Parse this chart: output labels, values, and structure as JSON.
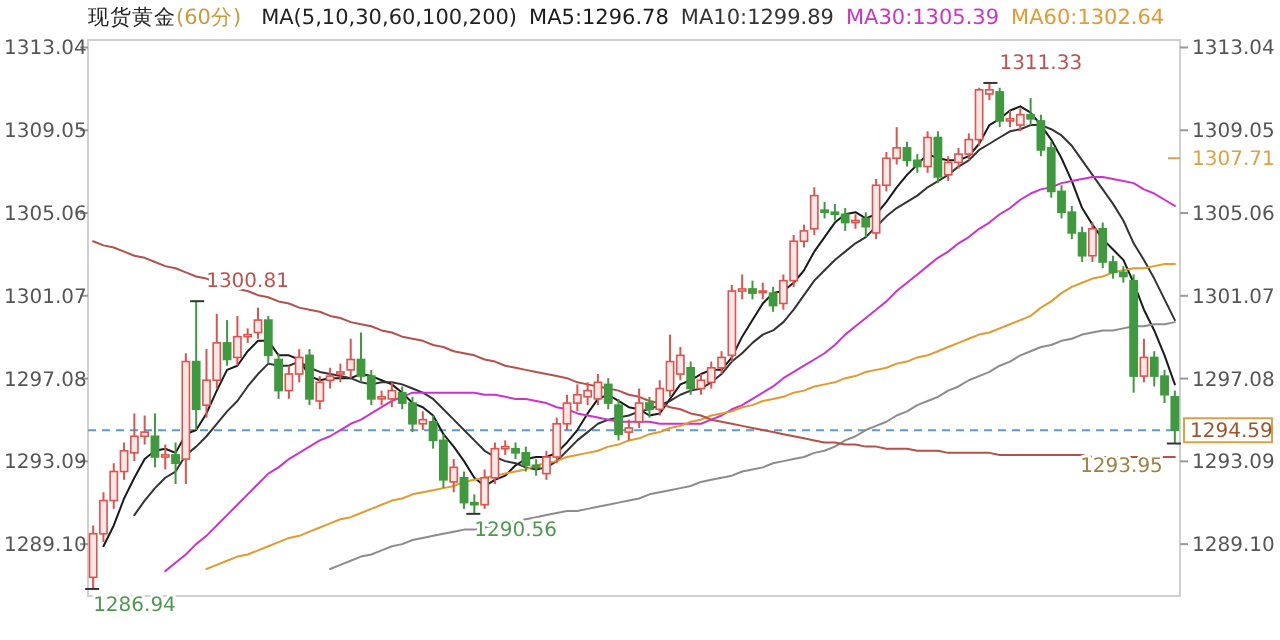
{
  "chart_data": {
    "type": "candlestick",
    "title": "现货黄金",
    "subtitle": "(60分)",
    "legend_title": "MA(5,10,30,60,100,200)",
    "legend": "top",
    "tick_labels": "y",
    "categories": [
      null,
      null,
      null,
      null,
      null,
      null,
      null,
      null,
      null,
      null,
      null,
      null,
      null,
      null,
      null,
      null,
      null,
      null,
      null,
      null,
      null,
      null,
      null,
      null,
      null,
      null,
      null,
      null,
      null,
      null,
      null,
      null,
      null,
      null,
      null,
      null,
      null,
      null,
      null,
      null,
      null,
      null,
      null,
      null,
      null,
      null,
      null,
      null,
      null,
      null,
      null,
      null,
      null,
      null,
      null,
      null,
      null,
      null,
      null,
      null,
      null,
      null,
      null,
      null,
      null,
      null,
      null,
      null,
      null,
      null,
      null,
      null,
      null,
      null,
      null,
      null,
      null,
      null,
      null,
      null,
      null,
      null,
      null,
      null,
      null,
      null,
      null,
      null,
      null,
      null,
      null,
      null,
      null,
      null,
      null,
      null,
      null,
      null,
      null,
      null,
      null,
      null,
      null,
      null,
      null,
      null
    ],
    "ylim": [
      1286.6,
      1313.4
    ],
    "yticks": [
      {
        "value": 1289.1,
        "label": "1289.10"
      },
      {
        "value": 1293.09,
        "label": "1293.09"
      },
      {
        "value": 1297.08,
        "label": "1297.08"
      },
      {
        "value": 1301.07,
        "label": "1301.07"
      },
      {
        "value": 1305.06,
        "label": "1305.06"
      },
      {
        "value": 1309.05,
        "label": "1309.05"
      },
      {
        "value": 1313.04,
        "label": "1313.04"
      }
    ],
    "y2lim": [
      1286.6,
      1313.4
    ],
    "y2ticks": [
      {
        "value": 1289.1,
        "label": "1289.10"
      },
      {
        "value": 1293.09,
        "label": "1293.09"
      },
      {
        "value": 1297.08,
        "label": "1297.08"
      },
      {
        "value": 1301.07,
        "label": "1301.07"
      },
      {
        "value": 1305.06,
        "label": "1305.06"
      },
      {
        "value": 1309.05,
        "label": "1309.05"
      },
      {
        "value": 1313.04,
        "label": "1313.04"
      }
    ],
    "ohlc": [
      [
        1287.5,
        1290.0,
        1286.94,
        1289.6
      ],
      [
        1289.6,
        1291.6,
        1289.2,
        1291.2
      ],
      [
        1291.2,
        1293.0,
        1290.8,
        1292.6
      ],
      [
        1292.6,
        1294.0,
        1292.2,
        1293.6
      ],
      [
        1293.5,
        1295.4,
        1293.1,
        1294.3
      ],
      [
        1294.3,
        1295.3,
        1293.9,
        1294.5
      ],
      [
        1294.3,
        1295.4,
        1292.8,
        1293.3
      ],
      [
        1293.3,
        1293.9,
        1292.7,
        1293.4
      ],
      [
        1293.4,
        1294.0,
        1292.0,
        1293.0
      ],
      [
        1293.2,
        1298.3,
        1292.0,
        1297.9
      ],
      [
        1297.9,
        1300.81,
        1294.6,
        1295.6
      ],
      [
        1295.8,
        1298.5,
        1295.2,
        1297.0
      ],
      [
        1297.0,
        1300.2,
        1296.6,
        1298.8
      ],
      [
        1298.8,
        1299.9,
        1297.7,
        1298.0
      ],
      [
        1298.1,
        1300.1,
        1297.7,
        1299.1
      ],
      [
        1299.1,
        1299.5,
        1298.8,
        1299.2
      ],
      [
        1299.3,
        1300.5,
        1299.0,
        1299.9
      ],
      [
        1299.9,
        1300.1,
        1297.8,
        1298.2
      ],
      [
        1298.0,
        1298.3,
        1296.1,
        1296.5
      ],
      [
        1296.5,
        1297.7,
        1296.1,
        1297.3
      ],
      [
        1297.3,
        1298.5,
        1296.9,
        1298.1
      ],
      [
        1298.2,
        1298.5,
        1295.8,
        1296.1
      ],
      [
        1296.0,
        1297.2,
        1295.6,
        1296.9
      ],
      [
        1297.0,
        1297.6,
        1296.6,
        1297.2
      ],
      [
        1297.3,
        1297.8,
        1296.9,
        1297.4
      ],
      [
        1297.5,
        1299.0,
        1297.1,
        1298.0
      ],
      [
        1298.0,
        1299.3,
        1296.9,
        1297.2
      ],
      [
        1297.2,
        1297.5,
        1295.8,
        1296.1
      ],
      [
        1296.1,
        1296.5,
        1295.8,
        1296.2
      ],
      [
        1296.1,
        1296.9,
        1295.7,
        1296.5
      ],
      [
        1296.4,
        1296.7,
        1295.6,
        1295.9
      ],
      [
        1295.9,
        1296.2,
        1294.5,
        1294.9
      ],
      [
        1294.9,
        1295.5,
        1294.6,
        1295.1
      ],
      [
        1295.0,
        1295.3,
        1293.7,
        1294.1
      ],
      [
        1294.1,
        1294.4,
        1291.8,
        1292.2
      ],
      [
        1292.1,
        1293.2,
        1291.6,
        1292.8
      ],
      [
        1292.3,
        1292.6,
        1290.8,
        1291.1
      ],
      [
        1291.1,
        1291.5,
        1290.56,
        1291.0
      ],
      [
        1291.0,
        1292.7,
        1290.8,
        1292.3
      ],
      [
        1292.3,
        1294.0,
        1292.0,
        1293.7
      ],
      [
        1293.7,
        1294.1,
        1293.4,
        1293.8
      ],
      [
        1293.7,
        1294.0,
        1293.2,
        1293.5
      ],
      [
        1293.5,
        1293.8,
        1292.6,
        1292.9
      ],
      [
        1292.9,
        1293.2,
        1292.4,
        1292.8
      ],
      [
        1292.5,
        1293.6,
        1292.2,
        1293.3
      ],
      [
        1293.3,
        1295.2,
        1293.0,
        1294.9
      ],
      [
        1294.9,
        1296.3,
        1294.6,
        1295.9
      ],
      [
        1295.9,
        1296.8,
        1295.5,
        1296.3
      ],
      [
        1296.2,
        1296.9,
        1295.8,
        1296.5
      ],
      [
        1296.1,
        1297.3,
        1295.8,
        1296.9
      ],
      [
        1296.8,
        1297.1,
        1295.6,
        1295.9
      ],
      [
        1295.8,
        1296.1,
        1294.1,
        1294.4
      ],
      [
        1294.5,
        1295.1,
        1294.1,
        1294.7
      ],
      [
        1295.0,
        1296.6,
        1294.7,
        1295.9
      ],
      [
        1295.9,
        1296.2,
        1295.2,
        1295.6
      ],
      [
        1295.6,
        1297.0,
        1295.3,
        1296.6
      ],
      [
        1296.5,
        1299.2,
        1296.2,
        1297.9
      ],
      [
        1297.3,
        1298.6,
        1297.0,
        1298.2
      ],
      [
        1297.6,
        1297.9,
        1296.3,
        1296.6
      ],
      [
        1296.6,
        1297.3,
        1296.3,
        1297.0
      ],
      [
        1296.9,
        1297.9,
        1296.6,
        1297.6
      ],
      [
        1297.6,
        1298.4,
        1297.3,
        1298.1
      ],
      [
        1298.2,
        1301.6,
        1297.9,
        1301.3
      ],
      [
        1301.3,
        1302.1,
        1300.9,
        1301.4
      ],
      [
        1301.4,
        1301.8,
        1300.9,
        1301.2
      ],
      [
        1301.3,
        1301.7,
        1300.9,
        1301.3
      ],
      [
        1301.2,
        1301.5,
        1300.3,
        1300.6
      ],
      [
        1300.7,
        1302.1,
        1300.4,
        1301.8
      ],
      [
        1301.8,
        1304.0,
        1301.5,
        1303.7
      ],
      [
        1303.7,
        1304.5,
        1303.4,
        1304.2
      ],
      [
        1304.3,
        1306.3,
        1304.0,
        1305.9
      ],
      [
        1305.2,
        1305.6,
        1304.8,
        1305.1
      ],
      [
        1305.1,
        1305.5,
        1304.7,
        1305.0
      ],
      [
        1305.0,
        1305.3,
        1304.2,
        1304.6
      ],
      [
        1304.6,
        1305.0,
        1304.3,
        1304.7
      ],
      [
        1304.8,
        1305.1,
        1303.9,
        1304.4
      ],
      [
        1304.1,
        1306.7,
        1303.8,
        1306.4
      ],
      [
        1306.4,
        1308.0,
        1306.1,
        1307.7
      ],
      [
        1307.7,
        1309.2,
        1307.4,
        1308.2
      ],
      [
        1308.2,
        1308.5,
        1307.3,
        1307.6
      ],
      [
        1307.6,
        1307.9,
        1307.0,
        1307.3
      ],
      [
        1307.3,
        1309.0,
        1307.0,
        1308.7
      ],
      [
        1308.7,
        1309.0,
        1306.5,
        1306.8
      ],
      [
        1306.9,
        1307.8,
        1306.6,
        1307.5
      ],
      [
        1307.5,
        1308.2,
        1307.2,
        1307.9
      ],
      [
        1307.9,
        1308.9,
        1307.6,
        1308.6
      ],
      [
        1308.6,
        1311.1,
        1308.3,
        1311.0
      ],
      [
        1310.8,
        1311.33,
        1310.5,
        1311.0
      ],
      [
        1310.9,
        1311.1,
        1309.2,
        1309.5
      ],
      [
        1309.5,
        1310.0,
        1309.2,
        1309.6
      ],
      [
        1309.3,
        1310.1,
        1309.0,
        1309.8
      ],
      [
        1309.8,
        1310.6,
        1309.3,
        1309.6
      ],
      [
        1309.5,
        1309.8,
        1307.8,
        1308.1
      ],
      [
        1308.2,
        1308.5,
        1305.8,
        1306.1
      ],
      [
        1306.1,
        1306.4,
        1304.8,
        1305.1
      ],
      [
        1305.1,
        1305.4,
        1303.8,
        1304.1
      ],
      [
        1304.1,
        1304.4,
        1302.7,
        1303.0
      ],
      [
        1303.0,
        1304.6,
        1302.7,
        1304.3
      ],
      [
        1304.3,
        1304.6,
        1302.4,
        1302.7
      ],
      [
        1302.7,
        1303.0,
        1301.9,
        1302.2
      ],
      [
        1302.2,
        1302.5,
        1301.7,
        1302.0
      ],
      [
        1301.8,
        1302.1,
        1296.4,
        1297.2
      ],
      [
        1297.2,
        1299.0,
        1296.9,
        1298.1
      ],
      [
        1298.1,
        1298.4,
        1296.7,
        1297.2
      ],
      [
        1297.2,
        1297.5,
        1295.9,
        1296.3
      ],
      [
        1296.2,
        1296.5,
        1293.95,
        1294.59
      ]
    ],
    "series": [
      {
        "type": "line",
        "name": "MA5:1296.78",
        "color": "#1a1a1a",
        "values": [
          null,
          1289.0,
          1290.0,
          1291.3,
          1292.3,
          1293.2,
          1293.6,
          1293.7,
          1293.5,
          1294.4,
          1294.6,
          1295.4,
          1296.5,
          1297.5,
          1297.7,
          1298.4,
          1298.9,
          1298.9,
          1298.2,
          1298.2,
          1298.0,
          1297.2,
          1297.0,
          1297.1,
          1297.1,
          1297.1,
          1297.3,
          1297.2,
          1297.0,
          1296.8,
          1296.4,
          1295.9,
          1295.7,
          1295.3,
          1294.4,
          1293.8,
          1293.1,
          1292.3,
          1291.9,
          1292.2,
          1292.4,
          1292.9,
          1293.2,
          1293.3,
          1293.3,
          1293.5,
          1294.0,
          1294.6,
          1295.4,
          1296.1,
          1296.3,
          1296.0,
          1295.7,
          1295.6,
          1295.3,
          1295.4,
          1296.1,
          1296.8,
          1297.0,
          1297.3,
          1297.5,
          1297.5,
          1298.1,
          1299.1,
          1299.9,
          1300.7,
          1301.2,
          1301.3,
          1301.7,
          1302.3,
          1303.2,
          1303.9,
          1304.6,
          1305.0,
          1305.1,
          1304.8,
          1305.0,
          1305.6,
          1306.3,
          1306.9,
          1307.4,
          1307.9,
          1307.7,
          1307.6,
          1307.6,
          1307.8,
          1308.4,
          1309.3,
          1309.6,
          1310.0,
          1310.2,
          1309.9,
          1309.3,
          1308.6,
          1307.7,
          1306.6,
          1305.3,
          1304.5,
          1303.8,
          1303.3,
          1302.8,
          1301.7,
          1300.4,
          1299.4,
          1298.2,
          1296.8
        ]
      },
      {
        "type": "line",
        "name": "MA10:1299.89",
        "color": "#333333",
        "values": [
          null,
          null,
          null,
          null,
          1290.5,
          1291.2,
          1291.8,
          1292.3,
          1292.6,
          1293.4,
          1293.8,
          1294.3,
          1294.9,
          1295.5,
          1296.0,
          1296.7,
          1297.3,
          1297.8,
          1297.7,
          1297.7,
          1297.9,
          1297.6,
          1297.4,
          1297.3,
          1297.2,
          1297.1,
          1296.9,
          1296.8,
          1296.9,
          1296.9,
          1296.8,
          1296.6,
          1296.4,
          1296.1,
          1295.6,
          1295.1,
          1294.6,
          1294.1,
          1293.6,
          1293.3,
          1293.1,
          1293.0,
          1292.8,
          1292.7,
          1292.8,
          1293.1,
          1293.6,
          1294.1,
          1294.5,
          1294.9,
          1295.1,
          1295.2,
          1295.3,
          1295.5,
          1295.6,
          1295.8,
          1296.0,
          1296.3,
          1296.5,
          1296.6,
          1296.9,
          1297.3,
          1297.9,
          1298.3,
          1298.8,
          1299.2,
          1299.4,
          1299.8,
          1300.4,
          1301.1,
          1301.8,
          1302.3,
          1302.8,
          1303.2,
          1303.6,
          1303.9,
          1304.4,
          1304.9,
          1305.3,
          1305.6,
          1305.9,
          1306.3,
          1306.6,
          1306.9,
          1307.3,
          1307.6,
          1308.1,
          1308.4,
          1308.7,
          1309.0,
          1309.1,
          1309.3,
          1309.3,
          1309.1,
          1308.8,
          1308.3,
          1307.6,
          1306.9,
          1306.2,
          1305.5,
          1304.7,
          1303.6,
          1302.8,
          1301.9,
          1300.9,
          1299.9
        ]
      },
      {
        "type": "line",
        "name": "MA30:1305.39",
        "color": "#cc33cc",
        "values": [
          null,
          null,
          null,
          null,
          null,
          null,
          null,
          1287.8,
          1288.2,
          1288.6,
          1289.1,
          1289.5,
          1290.0,
          1290.5,
          1291.0,
          1291.5,
          1292.0,
          1292.5,
          1292.8,
          1293.2,
          1293.5,
          1293.8,
          1294.1,
          1294.3,
          1294.6,
          1294.9,
          1295.1,
          1295.4,
          1295.7,
          1296.0,
          1296.2,
          1296.4,
          1296.4,
          1296.4,
          1296.4,
          1296.4,
          1296.4,
          1296.4,
          1296.3,
          1296.3,
          1296.2,
          1296.1,
          1296.1,
          1296.0,
          1295.9,
          1295.7,
          1295.6,
          1295.4,
          1295.3,
          1295.2,
          1295.1,
          1295.0,
          1295.0,
          1295.0,
          1295.0,
          1294.9,
          1294.9,
          1294.9,
          1294.9,
          1294.9,
          1295.1,
          1295.3,
          1295.6,
          1295.8,
          1296.1,
          1296.4,
          1296.7,
          1297.1,
          1297.4,
          1297.7,
          1298.0,
          1298.3,
          1298.7,
          1299.2,
          1299.6,
          1300.0,
          1300.4,
          1300.8,
          1301.3,
          1301.7,
          1302.1,
          1302.5,
          1302.9,
          1303.2,
          1303.6,
          1303.9,
          1304.3,
          1304.6,
          1305.0,
          1305.3,
          1305.7,
          1306.0,
          1306.2,
          1306.3,
          1306.5,
          1306.6,
          1306.7,
          1306.8,
          1306.8,
          1306.7,
          1306.6,
          1306.5,
          1306.2,
          1306.0,
          1305.7,
          1305.4
        ]
      },
      {
        "type": "line",
        "name": "MA60:1302.64",
        "color": "#e39a2e",
        "values": [
          null,
          null,
          null,
          null,
          null,
          null,
          null,
          null,
          null,
          null,
          null,
          1287.9,
          1288.1,
          1288.3,
          1288.5,
          1288.6,
          1288.8,
          1289.0,
          1289.2,
          1289.4,
          1289.5,
          1289.7,
          1289.9,
          1290.1,
          1290.3,
          1290.4,
          1290.6,
          1290.8,
          1291.0,
          1291.2,
          1291.3,
          1291.5,
          1291.6,
          1291.7,
          1291.8,
          1291.9,
          1292.1,
          1292.2,
          1292.3,
          1292.4,
          1292.5,
          1292.6,
          1292.7,
          1292.9,
          1293.0,
          1293.1,
          1293.3,
          1293.4,
          1293.5,
          1293.6,
          1293.8,
          1293.9,
          1294.1,
          1294.2,
          1294.4,
          1294.5,
          1294.7,
          1294.8,
          1295.0,
          1295.1,
          1295.3,
          1295.4,
          1295.5,
          1295.7,
          1295.8,
          1296.0,
          1296.1,
          1296.2,
          1296.4,
          1296.5,
          1296.7,
          1296.8,
          1296.9,
          1297.1,
          1297.2,
          1297.4,
          1297.5,
          1297.6,
          1297.8,
          1297.9,
          1298.1,
          1298.2,
          1298.4,
          1298.6,
          1298.8,
          1299.0,
          1299.2,
          1299.3,
          1299.5,
          1299.7,
          1299.9,
          1300.1,
          1300.5,
          1300.8,
          1301.2,
          1301.5,
          1301.7,
          1301.9,
          1302.0,
          1302.2,
          1302.3,
          1302.4,
          1302.4,
          1302.5,
          1302.6,
          1302.6
        ]
      },
      {
        "type": "line",
        "color": "#8c8c8c",
        "values": [
          null,
          null,
          null,
          null,
          null,
          null,
          null,
          null,
          null,
          null,
          null,
          null,
          null,
          null,
          null,
          null,
          null,
          null,
          null,
          null,
          null,
          null,
          null,
          1287.9,
          1288.1,
          1288.3,
          1288.5,
          1288.6,
          1288.8,
          1289.0,
          1289.1,
          1289.3,
          1289.4,
          1289.5,
          1289.6,
          1289.7,
          1289.8,
          1289.8,
          1289.9,
          1290.0,
          1290.1,
          1290.2,
          1290.3,
          1290.4,
          1290.5,
          1290.6,
          1290.7,
          1290.7,
          1290.8,
          1290.9,
          1291.0,
          1291.1,
          1291.2,
          1291.3,
          1291.5,
          1291.6,
          1291.7,
          1291.8,
          1291.9,
          1292.1,
          1292.2,
          1292.3,
          1292.4,
          1292.6,
          1292.7,
          1292.8,
          1293.0,
          1293.1,
          1293.2,
          1293.3,
          1293.5,
          1293.6,
          1293.8,
          1294.1,
          1294.3,
          1294.6,
          1294.8,
          1295.0,
          1295.3,
          1295.5,
          1295.8,
          1296.0,
          1296.2,
          1296.5,
          1296.7,
          1297.0,
          1297.2,
          1297.4,
          1297.7,
          1297.9,
          1298.2,
          1298.4,
          1298.6,
          1298.7,
          1298.9,
          1299.0,
          1299.2,
          1299.3,
          1299.4,
          1299.4,
          1299.5,
          1299.6,
          1299.6,
          1299.7,
          1299.7,
          1299.8
        ]
      },
      {
        "type": "line",
        "color": "#b5504a",
        "values": [
          1303.7,
          1303.5,
          1303.4,
          1303.2,
          1303.0,
          1302.9,
          1302.7,
          1302.5,
          1302.4,
          1302.2,
          1302.0,
          1301.9,
          1301.7,
          1301.6,
          1301.4,
          1301.3,
          1301.1,
          1301.0,
          1300.8,
          1300.7,
          1300.5,
          1300.4,
          1300.3,
          1300.1,
          1300.0,
          1299.8,
          1299.7,
          1299.6,
          1299.4,
          1299.3,
          1299.1,
          1299.0,
          1298.9,
          1298.7,
          1298.6,
          1298.4,
          1298.3,
          1298.2,
          1298.0,
          1297.9,
          1297.7,
          1297.6,
          1297.5,
          1297.4,
          1297.3,
          1297.2,
          1297.1,
          1296.9,
          1296.8,
          1296.7,
          1296.6,
          1296.5,
          1296.3,
          1296.2,
          1296.0,
          1295.9,
          1295.7,
          1295.6,
          1295.4,
          1295.3,
          1295.1,
          1295.0,
          1294.9,
          1294.8,
          1294.7,
          1294.6,
          1294.5,
          1294.4,
          1294.3,
          1294.2,
          1294.1,
          1294.0,
          1294.0,
          1293.9,
          1293.9,
          1293.8,
          1293.8,
          1293.7,
          1293.7,
          1293.7,
          1293.6,
          1293.6,
          1293.6,
          1293.5,
          1293.5,
          1293.5,
          1293.5,
          1293.5,
          1293.4,
          1293.4,
          1293.4,
          1293.4,
          1293.4,
          1293.4,
          1293.4,
          1293.4,
          1293.4,
          1293.3,
          1293.3,
          1293.3,
          1293.3,
          1293.3,
          1293.3,
          1293.3,
          1293.3,
          1293.3
        ]
      }
    ],
    "ref_lines": [
      {
        "axis": "y2",
        "value": 1294.59,
        "label": "1294.59",
        "color": "#5b9bd5",
        "line_style": "dashed"
      }
    ],
    "annotations": [
      "1286.94",
      "1300.81",
      "1290.56",
      "1311.33",
      "1293.95",
      "1307.71"
    ]
  }
}
